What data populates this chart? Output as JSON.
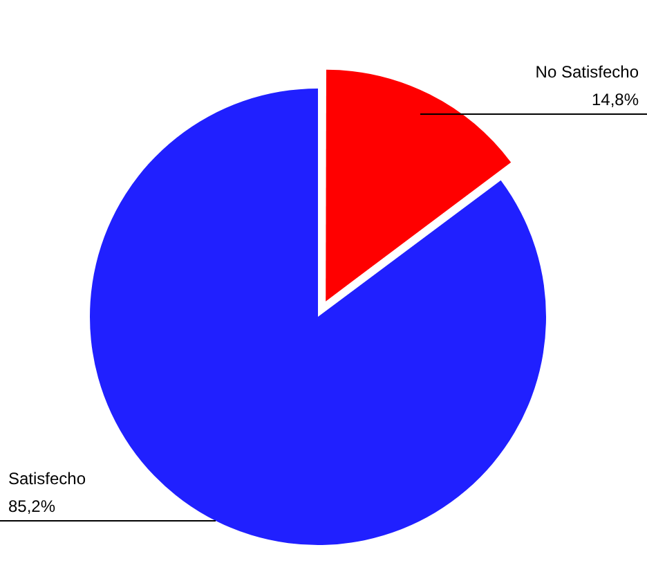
{
  "chart_data": {
    "type": "pie",
    "categories": [
      "No Satisfecho",
      "Satisfecho"
    ],
    "values": [
      14.8,
      85.2
    ],
    "colors": [
      "#ff0000",
      "#2020ff"
    ],
    "value_labels": [
      "14,8%",
      "85,2%"
    ],
    "legend": false
  }
}
